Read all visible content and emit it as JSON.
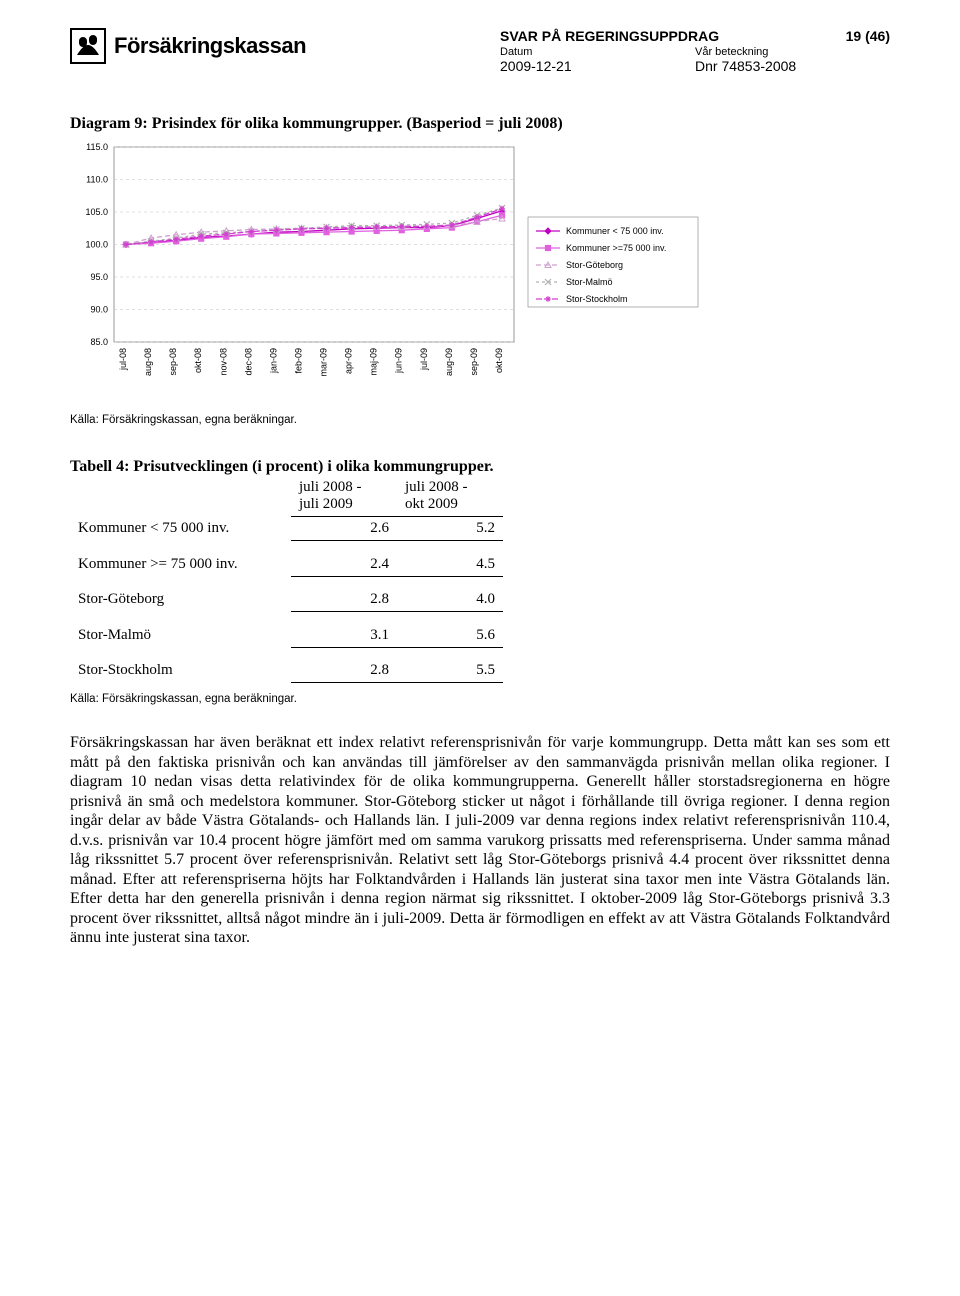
{
  "header": {
    "brand": "Försäkringskassan",
    "doc_title": "SVAR PÅ REGERINGSUPPDRAG",
    "page_num": "19 (46)",
    "datum_label": "Datum",
    "datum_value": "2009-12-21",
    "ref_label": "Vår beteckning",
    "ref_value": "Dnr 74853-2008"
  },
  "diagram": {
    "title": "Diagram 9: Prisindex för olika kommungrupper. (Basperiod = juli 2008)",
    "source": "Källa: Försäkringskassan, egna beräkningar.",
    "ylim": [
      85.0,
      115.0
    ],
    "ytick_step": 5.0,
    "yticks": [
      "85.0",
      "90.0",
      "95.0",
      "100.0",
      "105.0",
      "110.0",
      "115.0"
    ],
    "categories": [
      "jul-08",
      "aug-08",
      "sep-08",
      "okt-08",
      "nov-08",
      "dec-08",
      "jan-09",
      "feb-09",
      "mar-09",
      "apr-09",
      "maj-09",
      "jun-09",
      "jul-09",
      "aug-09",
      "sep-09",
      "okt-09"
    ],
    "legend": [
      {
        "label": "Kommuner < 75 000 inv.",
        "color": "#c000c0",
        "marker": "diamond",
        "dash": "0"
      },
      {
        "label": "Kommuner >=75 000 inv.",
        "color": "#e060e0",
        "marker": "square",
        "dash": "0"
      },
      {
        "label": "Stor-Göteborg",
        "color": "#d0a0d0",
        "marker": "triangle",
        "dash": "5,3"
      },
      {
        "label": "Stor-Malmö",
        "color": "#b0b0b0",
        "marker": "x",
        "dash": "3,3"
      },
      {
        "label": "Stor-Stockholm",
        "color": "#d040d0",
        "marker": "star",
        "dash": "6,2"
      }
    ],
    "series": {
      "k_lt75": [
        100.0,
        100.3,
        100.6,
        101.1,
        101.3,
        101.6,
        101.9,
        102.0,
        102.2,
        102.4,
        102.5,
        102.6,
        102.6,
        102.9,
        104.0,
        105.2
      ],
      "k_ge75": [
        100.0,
        100.2,
        100.5,
        100.9,
        101.2,
        101.6,
        101.7,
        101.8,
        101.9,
        102.0,
        102.1,
        102.2,
        102.4,
        102.6,
        103.5,
        104.5
      ],
      "goteborg": [
        100.0,
        101.0,
        101.5,
        101.9,
        102.1,
        102.3,
        102.4,
        102.5,
        102.6,
        102.7,
        102.7,
        102.7,
        102.8,
        102.9,
        103.5,
        104.0
      ],
      "malmo": [
        100.0,
        100.5,
        101.0,
        101.6,
        101.8,
        102.0,
        102.3,
        102.5,
        102.7,
        102.9,
        102.9,
        103.0,
        103.1,
        103.3,
        104.5,
        105.6
      ],
      "sthlm": [
        100.0,
        100.4,
        100.8,
        101.3,
        101.6,
        102.0,
        102.2,
        102.4,
        102.5,
        102.6,
        102.7,
        102.8,
        102.8,
        103.0,
        104.2,
        105.5
      ]
    },
    "background_color": "#ffffff",
    "grid_color": "#bfbfbf",
    "label_fontsize": 9
  },
  "table": {
    "title": "Tabell 4: Prisutvecklingen (i procent)  i olika kommungrupper.",
    "col1": "juli 2008 -\njuli 2009",
    "col2": "juli 2008 -\nokt 2009",
    "rows": [
      {
        "name": "Kommuner < 75 000 inv.",
        "v1": "2.6",
        "v2": "5.2"
      },
      {
        "name": "Kommuner >= 75 000 inv.",
        "v1": "2.4",
        "v2": "4.5"
      },
      {
        "name": "Stor-Göteborg",
        "v1": "2.8",
        "v2": "4.0"
      },
      {
        "name": "Stor-Malmö",
        "v1": "3.1",
        "v2": "5.6"
      },
      {
        "name": "Stor-Stockholm",
        "v1": "2.8",
        "v2": "5.5"
      }
    ],
    "source": "Källa: Försäkringskassan, egna beräkningar."
  },
  "body": {
    "text": "Försäkringskassan har även beräknat ett index relativt referensprisnivån för varje kommungrupp. Detta mått kan ses som ett mått på den faktiska prisnivån och kan användas till jämförelser av den sammanvägda prisnivån mellan olika regioner. I diagram 10 nedan visas detta relativindex för de olika kommungrupperna. Generellt håller storstadsregionerna en högre prisnivå än små och medelstora kommuner. Stor-Göteborg sticker ut något i förhållande till övriga regioner. I denna region ingår delar av både Västra Götalands- och Hallands län. I juli-2009 var denna regions index relativt referensprisnivån 110.4, d.v.s. prisnivån var 10.4 procent högre jämfört med om samma varukorg prissatts med referenspriserna. Under samma månad låg rikssnittet 5.7 procent över referensprisnivån. Relativt sett låg Stor-Göteborgs prisnivå 4.4 procent över rikssnittet denna månad. Efter att referenspriserna höjts har Folktandvården i Hallands län justerat sina taxor men inte Västra Götalands län. Efter detta har den generella prisnivån i denna region närmat sig rikssnittet. I oktober-2009 låg Stor-Göteborgs prisnivå 3.3 procent över rikssnittet, alltså något mindre än i juli-2009. Detta är förmodligen en effekt av att Västra Götalands Folktandvård ännu inte justerat sina taxor."
  }
}
